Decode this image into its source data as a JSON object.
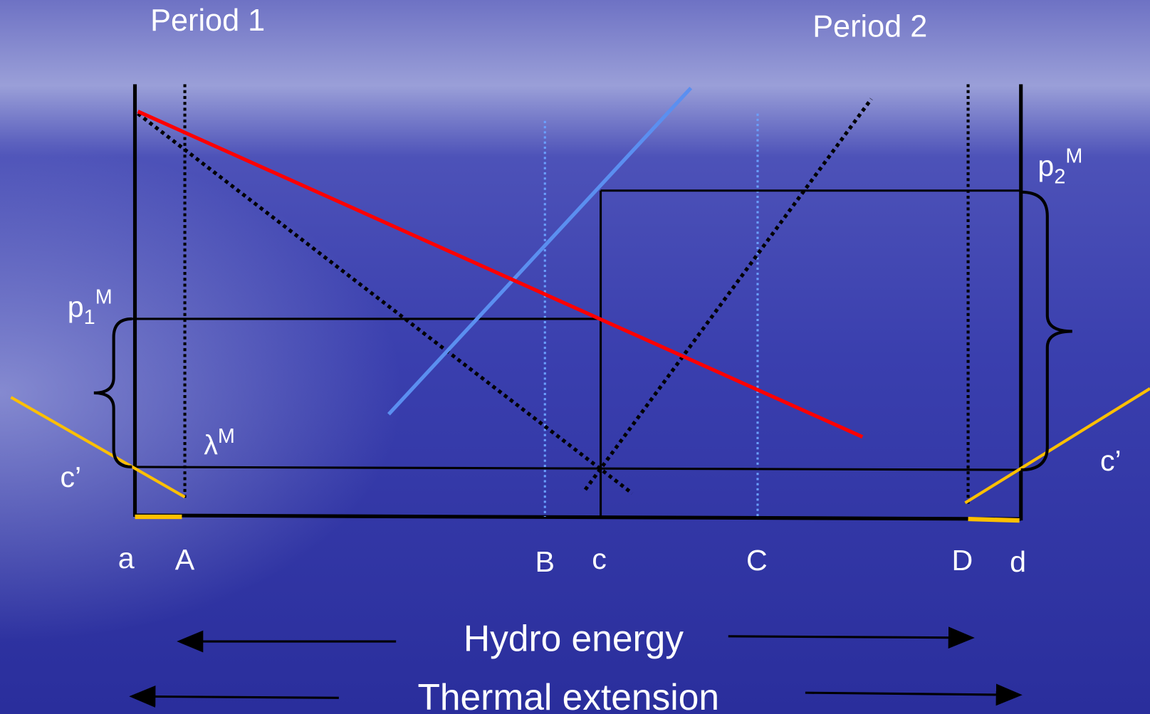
{
  "titles": {
    "period_1": "Period 1",
    "period_2": "Period 2"
  },
  "price_labels": [
    {
      "base": "p",
      "sub": "1",
      "sup": "M"
    },
    {
      "base": "p",
      "sub": "2",
      "sup": "M"
    },
    {
      "base": "λ",
      "sup": "M"
    }
  ],
  "cost_labels": [
    "c’",
    "c’"
  ],
  "axis_labels": [
    "a",
    "A",
    "B",
    "c",
    "C",
    "D",
    "d"
  ],
  "arrow_labels": [
    "Hydro energy",
    "Thermal extension"
  ]
}
